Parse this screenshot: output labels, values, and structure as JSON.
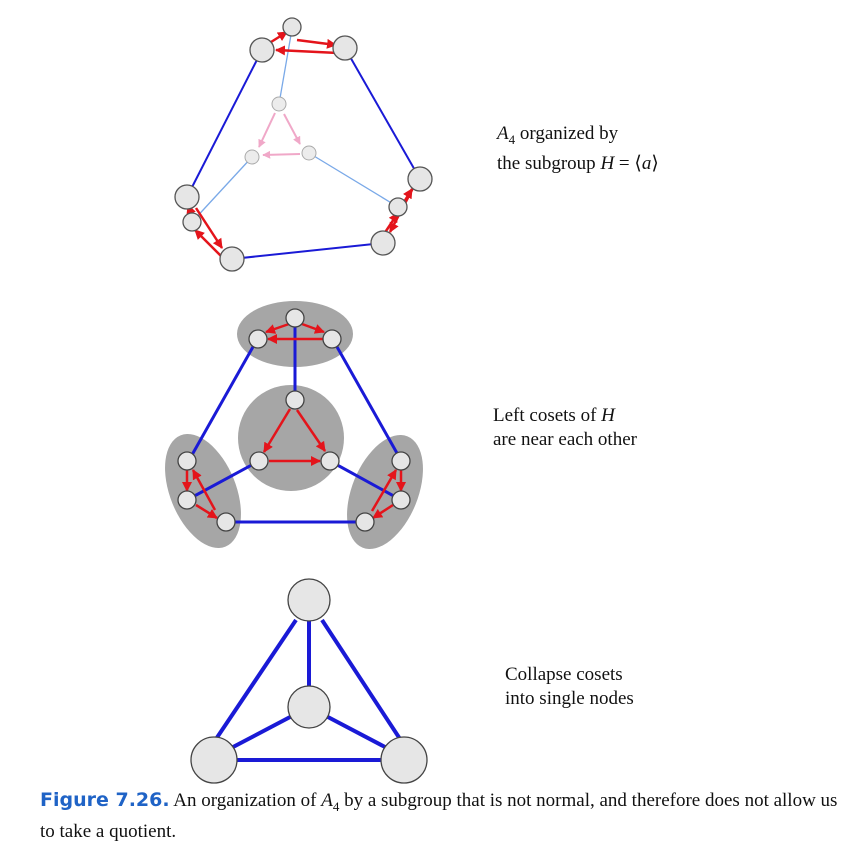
{
  "colors": {
    "blue": "#1a1ad6",
    "light_blue": "#7aa9e8",
    "red": "#e4141b",
    "pink": "#f0a8c8",
    "node_fill": "#e6e6e6",
    "coset_fill": "#a6a6a6",
    "caption_blue": "#1f63c6"
  },
  "labels": {
    "panel1": {
      "line1_group": "A",
      "line1_sub": "4",
      "line1_text": " organized by",
      "line2_prefix": "the subgroup ",
      "line2_H": "H",
      "line2_eq": " = ⟨",
      "line2_a": "a",
      "line2_close": "⟩"
    },
    "panel2": {
      "line1_prefix": "Left cosets of ",
      "line1_H": "H",
      "line2": "are near each other"
    },
    "panel3": {
      "line1": "Collapse cosets",
      "line2": "into single nodes"
    }
  },
  "caption": {
    "figure_label": "Figure 7.26.",
    "text_before": " An organization of ",
    "group": "A",
    "group_sub": "4",
    "text_after": " by a subgroup that is not normal, and therefore does not allow us to take a quotient."
  }
}
